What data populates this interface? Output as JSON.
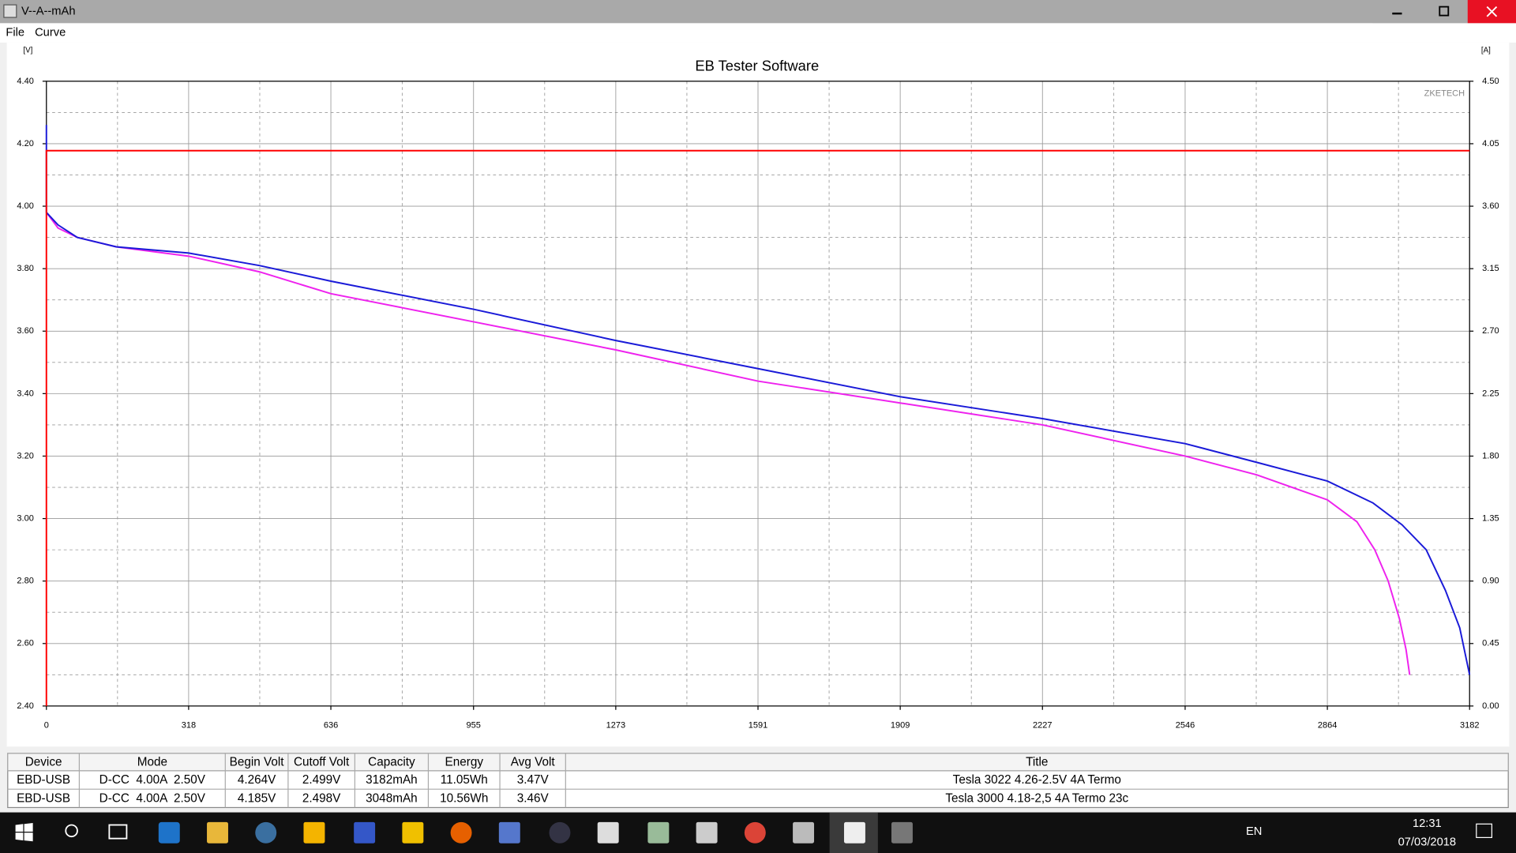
{
  "window": {
    "title": "V--A--mAh"
  },
  "menu": [
    "File",
    "Curve"
  ],
  "chart_data": {
    "type": "line",
    "title": "EB Tester Software",
    "watermark": "ZKETECH",
    "y_label": "[V]",
    "y2_label": "[A]",
    "grid": true,
    "xlim": [
      0,
      3182
    ],
    "xticks": [
      0,
      318,
      636,
      955,
      1273,
      1591,
      1909,
      2227,
      2546,
      2864,
      3182
    ],
    "ylim": [
      2.4,
      4.4
    ],
    "yticks": [
      {
        "value": 2.4,
        "label": "2.40"
      },
      {
        "value": 2.6,
        "label": "2.60"
      },
      {
        "value": 2.8,
        "label": "2.80"
      },
      {
        "value": 3,
        "label": "3.00"
      },
      {
        "value": 3.2,
        "label": "3.20"
      },
      {
        "value": 3.4,
        "label": "3.40"
      },
      {
        "value": 3.6,
        "label": "3.60"
      },
      {
        "value": 3.8,
        "label": "3.80"
      },
      {
        "value": 4,
        "label": "4.00"
      },
      {
        "value": 4.2,
        "label": "4.20"
      },
      {
        "value": 4.4,
        "label": "4.40"
      }
    ],
    "y2lim": [
      0,
      4.5
    ],
    "y2ticks": [
      {
        "value": 0,
        "label": "0.00"
      },
      {
        "value": 0.45,
        "label": "0.45"
      },
      {
        "value": 0.9,
        "label": "0.90"
      },
      {
        "value": 1.35,
        "label": "1.35"
      },
      {
        "value": 1.8,
        "label": "1.80"
      },
      {
        "value": 2.25,
        "label": "2.25"
      },
      {
        "value": 2.7,
        "label": "2.70"
      },
      {
        "value": 3.15,
        "label": "3.15"
      },
      {
        "value": 3.6,
        "label": "3.60"
      },
      {
        "value": 4.05,
        "label": "4.05"
      },
      {
        "value": 4.5,
        "label": "4.50"
      }
    ],
    "series": [
      {
        "color": "#ee22ee",
        "x": [
          0,
          26,
          69,
          156,
          318,
          476,
          636,
          955,
          1273,
          1591,
          1909,
          2227,
          2546,
          2706,
          2864,
          2930,
          2970,
          3000,
          3025,
          3040,
          3048
        ],
        "values": [
          3.98,
          3.93,
          3.9,
          3.87,
          3.84,
          3.79,
          3.72,
          3.63,
          3.54,
          3.44,
          3.37,
          3.3,
          3.2,
          3.14,
          3.06,
          2.99,
          2.9,
          2.8,
          2.68,
          2.58,
          2.5
        ]
      },
      {
        "color": "#1a1ad8",
        "x": [
          0,
          0,
          26,
          69,
          156,
          318,
          476,
          636,
          955,
          1273,
          1591,
          1909,
          2227,
          2546,
          2706,
          2864,
          2966,
          3031,
          3085,
          3128,
          3160,
          3182
        ],
        "values": [
          4.26,
          3.98,
          3.94,
          3.9,
          3.87,
          3.85,
          3.81,
          3.76,
          3.67,
          3.57,
          3.48,
          3.39,
          3.32,
          3.24,
          3.18,
          3.12,
          3.05,
          2.98,
          2.9,
          2.77,
          2.65,
          2.5
        ]
      },
      {
        "color": "#ff0000",
        "axis": "y2",
        "x": [
          0,
          0,
          3182
        ],
        "values": [
          0,
          4,
          4
        ]
      }
    ]
  },
  "table": {
    "columns": [
      "Device",
      "Mode",
      "Begin Volt",
      "Cutoff Volt",
      "Capacity",
      "Energy",
      "Avg Volt",
      "Title"
    ],
    "rows": [
      [
        "EBD-USB",
        "D-CC  4.00A  2.50V",
        "4.264V",
        "2.499V",
        "3182mAh",
        "11.05Wh",
        "3.47V",
        "Tesla 3022 4.26-2.5V 4A Termo"
      ],
      [
        "EBD-USB",
        "D-CC  4.00A  2.50V",
        "4.185V",
        "2.498V",
        "3048mAh",
        "10.56Wh",
        "3.46V",
        "Tesla 3000 4.18-2,5 4A Termo 23c"
      ]
    ]
  },
  "taskbar": {
    "language": "EN",
    "time": "12:31",
    "date": "07/03/2018"
  }
}
